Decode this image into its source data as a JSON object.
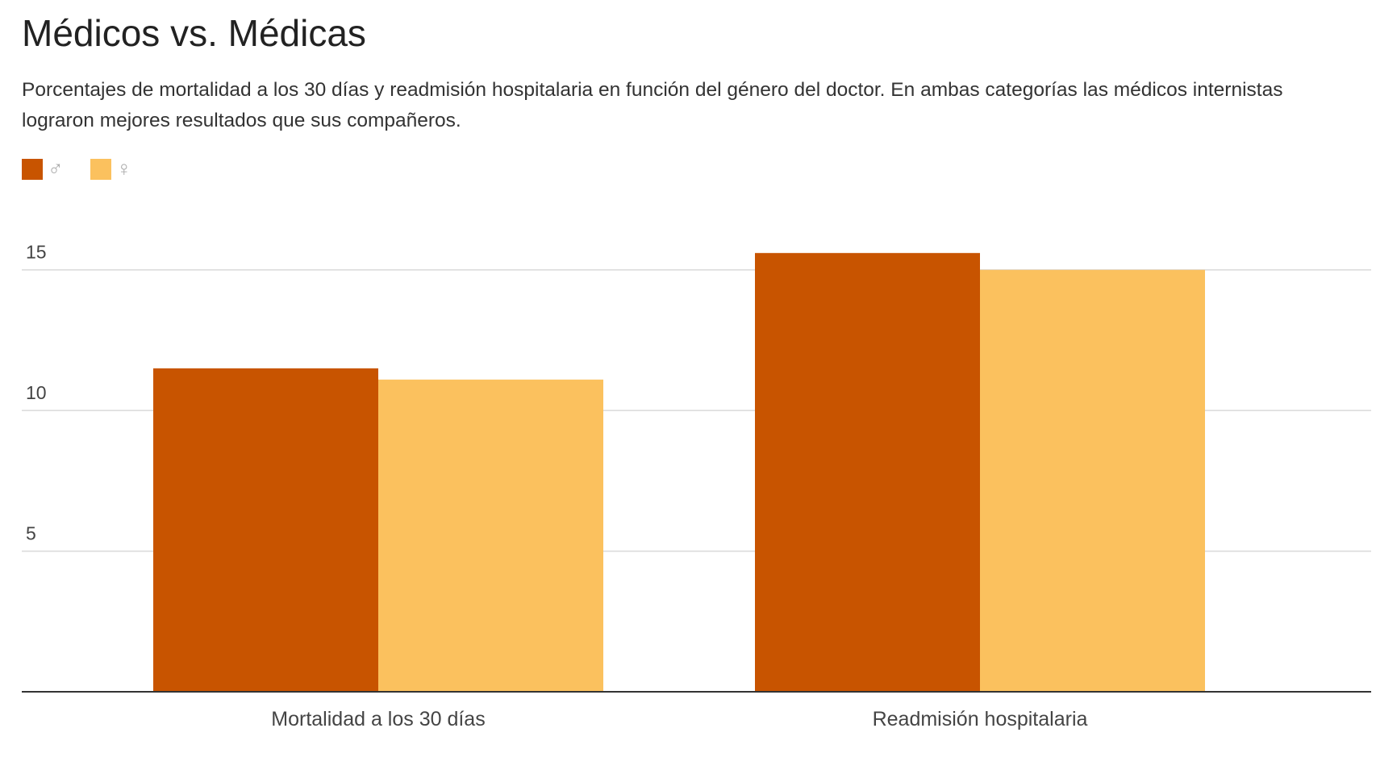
{
  "chart_data": {
    "type": "bar",
    "title": "Médicos vs. Médicas",
    "subtitle": "Porcentajes de mortalidad a los 30 días y readmisión hospitalaria en función del género del doctor. En ambas categorías las médicos internistas lograron mejores resultados que sus compañeros.",
    "categories": [
      "Mortalidad a los 30 días",
      "Readmisión hospitalaria"
    ],
    "series": [
      {
        "name": "♂",
        "color": "#c85400",
        "values": [
          11.5,
          15.6
        ]
      },
      {
        "name": "♀",
        "color": "#fbc15e",
        "values": [
          11.1,
          15.0
        ]
      }
    ],
    "yticks": [
      5,
      10,
      15
    ],
    "ylim": [
      0,
      17.2
    ],
    "grid": true,
    "legend": "top-left",
    "xlabel": "",
    "ylabel": ""
  }
}
